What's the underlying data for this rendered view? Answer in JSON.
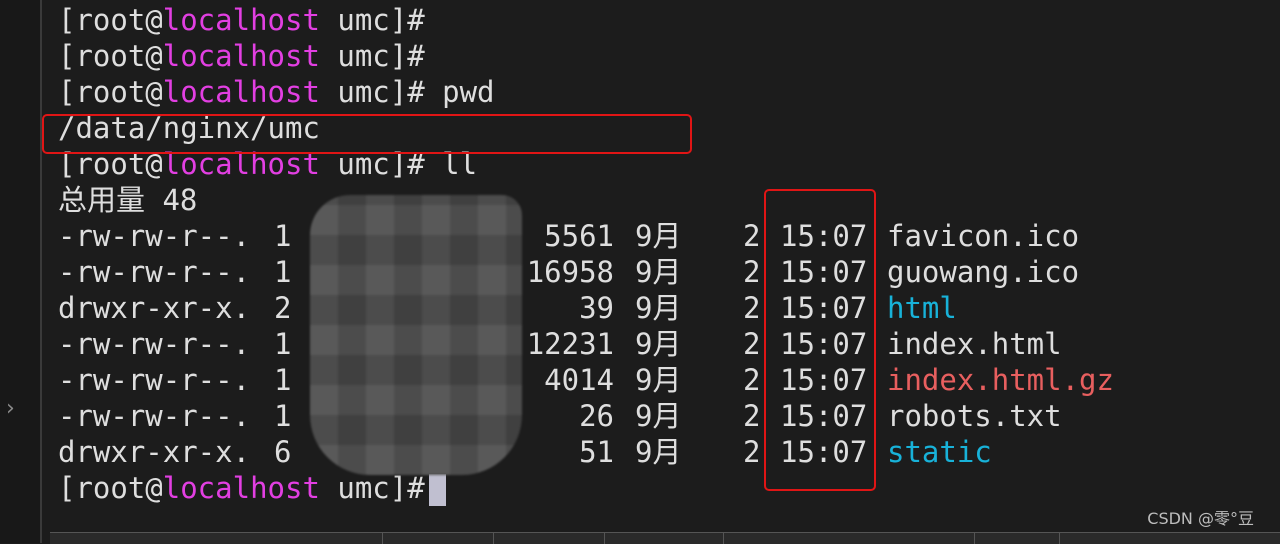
{
  "prompt": {
    "open": "[root@",
    "host": "localhost",
    "dir": " umc]#"
  },
  "lines": [
    {
      "cmd": ""
    },
    {
      "cmd": ""
    },
    {
      "cmd": " pwd"
    }
  ],
  "pwd_output": "/data/nginx/umc",
  "ll_cmd": " ll",
  "total": "总用量 48",
  "files": [
    {
      "perm": "-rw-rw-r--.",
      "links": "1",
      "size": "5561",
      "month": "9月",
      "day": "2",
      "time": "15:07",
      "name": "favicon.ico",
      "type": "file"
    },
    {
      "perm": "-rw-rw-r--.",
      "links": "1",
      "size": "16958",
      "month": "9月",
      "day": "2",
      "time": "15:07",
      "name": "guowang.ico",
      "type": "file"
    },
    {
      "perm": "drwxr-xr-x.",
      "links": "2",
      "size": "39",
      "month": "9月",
      "day": "2",
      "time": "15:07",
      "name": "html",
      "type": "dir"
    },
    {
      "perm": "-rw-rw-r--.",
      "links": "1",
      "size": "12231",
      "month": "9月",
      "day": "2",
      "time": "15:07",
      "name": "index.html",
      "type": "file"
    },
    {
      "perm": "-rw-rw-r--.",
      "links": "1",
      "size": "4014",
      "month": "9月",
      "day": "2",
      "time": "15:07",
      "name": "index.html.gz",
      "type": "archive"
    },
    {
      "perm": "-rw-rw-r--.",
      "links": "1",
      "size": "26",
      "month": "9月",
      "day": "2",
      "time": "15:07",
      "name": "robots.txt",
      "type": "file"
    },
    {
      "perm": "drwxr-xr-x.",
      "links": "6",
      "size": "51",
      "month": "9月",
      "day": "2",
      "time": "15:07",
      "name": "static",
      "type": "dir"
    }
  ],
  "watermark": "CSDN @零°豆",
  "colors": {
    "hostname": "#e23fe2",
    "directory": "#18b2d9",
    "archive": "#e85f5f",
    "highlight_box": "#e01515"
  }
}
